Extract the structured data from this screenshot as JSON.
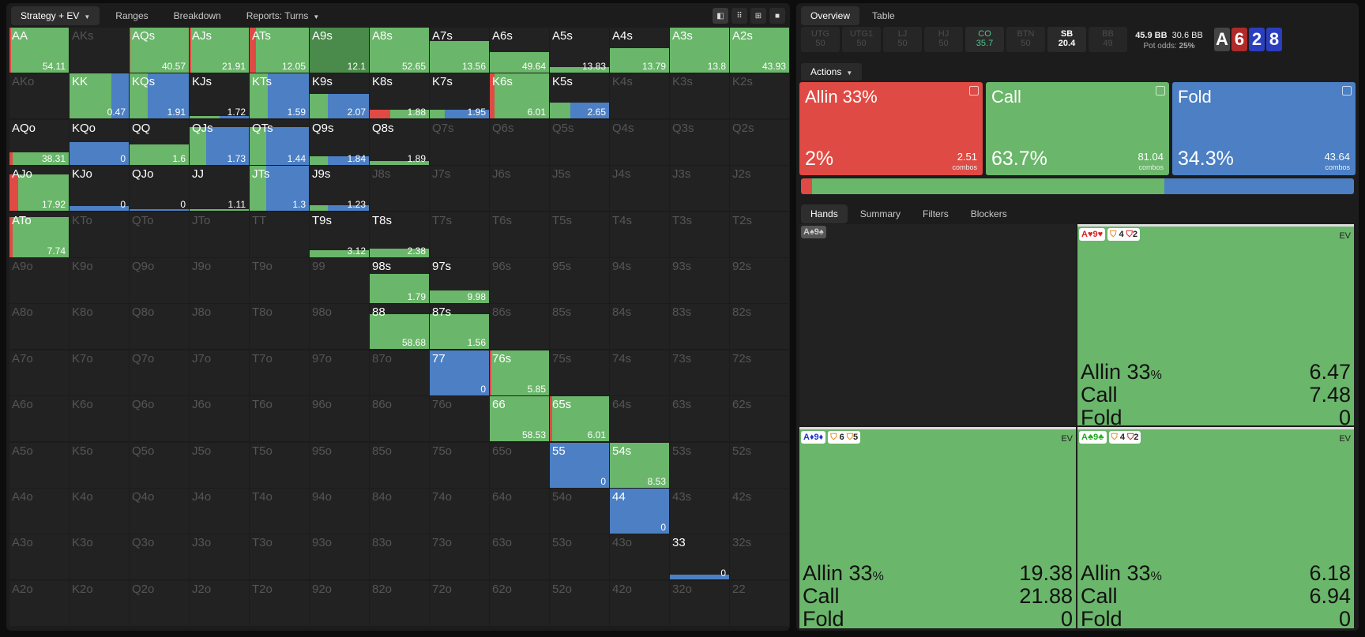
{
  "left_tabs": {
    "strategy": "Strategy + EV",
    "ranges": "Ranges",
    "breakdown": "Breakdown",
    "reports": "Reports: Turns"
  },
  "view_icons": [
    "◧",
    "⠿",
    "⊞",
    "■"
  ],
  "colors": {
    "allin": "#e04a44",
    "call": "#6ab66a",
    "fold": "#4c7fc4",
    "dark": "#222222",
    "deep": "#4a8a4a"
  },
  "hand_grid": [
    [
      "AA",
      "AKs",
      "AQs",
      "AJs",
      "ATs",
      "A9s",
      "A8s",
      "A7s",
      "A6s",
      "A5s",
      "A4s",
      "A3s",
      "A2s"
    ],
    [
      "AKo",
      "KK",
      "KQs",
      "KJs",
      "KTs",
      "K9s",
      "K8s",
      "K7s",
      "K6s",
      "K5s",
      "K4s",
      "K3s",
      "K2s"
    ],
    [
      "AQo",
      "KQo",
      "QQ",
      "QJs",
      "QTs",
      "Q9s",
      "Q8s",
      "Q7s",
      "Q6s",
      "Q5s",
      "Q4s",
      "Q3s",
      "Q2s"
    ],
    [
      "AJo",
      "KJo",
      "QJo",
      "JJ",
      "JTs",
      "J9s",
      "J8s",
      "J7s",
      "J6s",
      "J5s",
      "J4s",
      "J3s",
      "J2s"
    ],
    [
      "ATo",
      "KTo",
      "QTo",
      "JTo",
      "TT",
      "T9s",
      "T8s",
      "T7s",
      "T6s",
      "T5s",
      "T4s",
      "T3s",
      "T2s"
    ],
    [
      "A9o",
      "K9o",
      "Q9o",
      "J9o",
      "T9o",
      "99",
      "98s",
      "97s",
      "96s",
      "95s",
      "94s",
      "93s",
      "92s"
    ],
    [
      "A8o",
      "K8o",
      "Q8o",
      "J8o",
      "T8o",
      "98o",
      "88",
      "87s",
      "86s",
      "85s",
      "84s",
      "83s",
      "82s"
    ],
    [
      "A7o",
      "K7o",
      "Q7o",
      "J7o",
      "T7o",
      "97o",
      "87o",
      "77",
      "76s",
      "75s",
      "74s",
      "73s",
      "72s"
    ],
    [
      "A6o",
      "K6o",
      "Q6o",
      "J6o",
      "T6o",
      "96o",
      "86o",
      "76o",
      "66",
      "65s",
      "64s",
      "63s",
      "62s"
    ],
    [
      "A5o",
      "K5o",
      "Q5o",
      "J5o",
      "T5o",
      "95o",
      "85o",
      "75o",
      "65o",
      "55",
      "54s",
      "53s",
      "52s"
    ],
    [
      "A4o",
      "K4o",
      "Q4o",
      "J4o",
      "T4o",
      "94o",
      "84o",
      "74o",
      "64o",
      "54o",
      "44",
      "43s",
      "42s"
    ],
    [
      "A3o",
      "K3o",
      "Q3o",
      "J3o",
      "T3o",
      "93o",
      "83o",
      "73o",
      "63o",
      "53o",
      "43o",
      "33",
      "32s"
    ],
    [
      "A2o",
      "K2o",
      "Q2o",
      "J2o",
      "T2o",
      "92o",
      "82o",
      "72o",
      "62o",
      "52o",
      "42o",
      "32o",
      "22"
    ]
  ],
  "hand_data": {
    "AA": {
      "ev": "54.11",
      "fill": 1,
      "mix": [
        0.02,
        0.98,
        0
      ]
    },
    "AQs": {
      "ev": "40.57",
      "fill": 1,
      "mix": [
        0.01,
        0.99,
        0
      ]
    },
    "AJs": {
      "ev": "21.91",
      "fill": 1,
      "mix": [
        0.03,
        0.97,
        0
      ]
    },
    "ATs": {
      "ev": "12.05",
      "fill": 1,
      "mix": [
        0.1,
        0.9,
        0
      ]
    },
    "A9s": {
      "ev": "12.1",
      "fill": 1,
      "mix": [
        0,
        1,
        0
      ],
      "deep": true
    },
    "A8s": {
      "ev": "52.65",
      "fill": 1,
      "mix": [
        0,
        1,
        0
      ]
    },
    "A7s": {
      "ev": "13.56",
      "fill": 0.7,
      "mix": [
        0,
        1,
        0
      ]
    },
    "A6s": {
      "ev": "49.64",
      "fill": 0.45,
      "mix": [
        0,
        1,
        0
      ]
    },
    "A5s": {
      "ev": "13.83",
      "fill": 0.12,
      "mix": [
        0,
        1,
        0
      ]
    },
    "A4s": {
      "ev": "13.79",
      "fill": 0.55,
      "mix": [
        0,
        1,
        0
      ]
    },
    "A3s": {
      "ev": "13.8",
      "fill": 1,
      "mix": [
        0,
        1,
        0
      ]
    },
    "A2s": {
      "ev": "43.93",
      "fill": 1,
      "mix": [
        0,
        1,
        0
      ]
    },
    "KK": {
      "ev": "0.47",
      "fill": 1,
      "mix": [
        0,
        0.7,
        0.3
      ]
    },
    "KQs": {
      "ev": "1.91",
      "fill": 1,
      "mix": [
        0,
        0.3,
        0.7
      ]
    },
    "KJs": {
      "ev": "1.72",
      "fill": 0.06,
      "mix": [
        0,
        0.5,
        0.5
      ]
    },
    "KTs": {
      "ev": "1.59",
      "fill": 1,
      "mix": [
        0,
        0.3,
        0.7
      ]
    },
    "K9s": {
      "ev": "2.07",
      "fill": 0.55,
      "mix": [
        0,
        0.3,
        0.7
      ]
    },
    "K8s": {
      "ev": "1.88",
      "fill": 0.2,
      "mix": [
        0.35,
        0.65,
        0
      ]
    },
    "K7s": {
      "ev": "1.95",
      "fill": 0.2,
      "mix": [
        0,
        0.25,
        0.75
      ]
    },
    "K6s": {
      "ev": "6.01",
      "fill": 1,
      "mix": [
        0.08,
        0.92,
        0
      ]
    },
    "K5s": {
      "ev": "2.65",
      "fill": 0.35,
      "mix": [
        0,
        0.35,
        0.65
      ]
    },
    "AQo": {
      "ev": "38.31",
      "fill": 0.28,
      "mix": [
        0.05,
        0.95,
        0
      ]
    },
    "KQo": {
      "ev": "0",
      "fill": 0.5,
      "mix": [
        0,
        0,
        1
      ]
    },
    "QQ": {
      "ev": "1.6",
      "fill": 0.45,
      "mix": [
        0,
        1,
        0
      ]
    },
    "QJs": {
      "ev": "1.73",
      "fill": 0.85,
      "mix": [
        0,
        0.28,
        0.72
      ]
    },
    "QTs": {
      "ev": "1.44",
      "fill": 0.85,
      "mix": [
        0,
        0.28,
        0.72
      ]
    },
    "Q9s": {
      "ev": "1.84",
      "fill": 0.2,
      "mix": [
        0,
        0.3,
        0.7
      ]
    },
    "Q8s": {
      "ev": "1.89",
      "fill": 0.08,
      "mix": [
        0,
        1,
        0
      ]
    },
    "AJo": {
      "ev": "17.92",
      "fill": 0.8,
      "mix": [
        0.15,
        0.85,
        0
      ]
    },
    "KJo": {
      "ev": "0",
      "fill": 0.1,
      "mix": [
        0,
        0,
        1
      ]
    },
    "QJo": {
      "ev": "0",
      "fill": 0.01,
      "mix": [
        0,
        0,
        1
      ]
    },
    "JJ": {
      "ev": "1.11",
      "fill": 0.03,
      "mix": [
        0,
        1,
        0
      ]
    },
    "JTs": {
      "ev": "1.3",
      "fill": 1,
      "mix": [
        0,
        0.28,
        0.72
      ]
    },
    "J9s": {
      "ev": "1.23",
      "fill": 0.12,
      "mix": [
        0,
        0.3,
        0.7
      ]
    },
    "ATo": {
      "ev": "7.74",
      "fill": 0.9,
      "mix": [
        0.05,
        0.95,
        0
      ]
    },
    "T9s": {
      "ev": "3.12",
      "fill": 0.15,
      "mix": [
        0,
        1,
        0
      ]
    },
    "T8s": {
      "ev": "2.38",
      "fill": 0.2,
      "mix": [
        0,
        1,
        0
      ]
    },
    "98s": {
      "ev": "1.79",
      "fill": 0.65,
      "mix": [
        0,
        1,
        0
      ]
    },
    "97s": {
      "ev": "9.98",
      "fill": 0.28,
      "mix": [
        0,
        1,
        0
      ]
    },
    "88": {
      "ev": "58.68",
      "fill": 0.78,
      "mix": [
        0,
        1,
        0
      ]
    },
    "87s": {
      "ev": "1.56",
      "fill": 0.78,
      "mix": [
        0,
        1,
        0
      ]
    },
    "77": {
      "ev": "0",
      "fill": 1,
      "mix": [
        0,
        0,
        1
      ]
    },
    "76s": {
      "ev": "5.85",
      "fill": 1,
      "mix": [
        0.03,
        0.97,
        0
      ]
    },
    "66": {
      "ev": "58.53",
      "fill": 1,
      "mix": [
        0,
        1,
        0
      ]
    },
    "65s": {
      "ev": "6.01",
      "fill": 1,
      "mix": [
        0.04,
        0.96,
        0
      ]
    },
    "55": {
      "ev": "0",
      "fill": 1,
      "mix": [
        0,
        0,
        1
      ]
    },
    "54s": {
      "ev": "8.53",
      "fill": 1,
      "mix": [
        0,
        1,
        0
      ]
    },
    "44": {
      "ev": "0",
      "fill": 1,
      "mix": [
        0,
        0,
        1
      ]
    },
    "33": {
      "ev": "0",
      "fill": 0.1,
      "mix": [
        0,
        0,
        1
      ]
    }
  },
  "right_tabs": {
    "overview": "Overview",
    "table": "Table"
  },
  "positions": [
    {
      "name": "UTG",
      "stack": "50"
    },
    {
      "name": "UTG1",
      "stack": "50"
    },
    {
      "name": "LJ",
      "stack": "50"
    },
    {
      "name": "HJ",
      "stack": "50"
    },
    {
      "name": "CO",
      "stack": "35.7"
    },
    {
      "name": "BTN",
      "stack": "50"
    },
    {
      "name": "SB",
      "stack": "20.4"
    },
    {
      "name": "BB",
      "stack": "49"
    }
  ],
  "pot": {
    "bb": "45.9 BB",
    "bb2": "30.6 BB",
    "odds_label": "Pot odds:",
    "odds": "25%"
  },
  "board": [
    {
      "rank": "A",
      "color": "#444444"
    },
    {
      "rank": "6",
      "color": "#b02a2a"
    },
    {
      "rank": "2",
      "color": "#2a3fbf"
    },
    {
      "rank": "8",
      "color": "#2a3fbf"
    }
  ],
  "actions_label": "Actions",
  "actions": [
    {
      "name": "Allin 33%",
      "pct": "2%",
      "combos": "2.51",
      "combos_label": "combos",
      "color": "#e04a44",
      "share": 0.02
    },
    {
      "name": "Call",
      "pct": "63.7%",
      "combos": "81.04",
      "combos_label": "combos",
      "color": "#6ab66a",
      "share": 0.637
    },
    {
      "name": "Fold",
      "pct": "34.3%",
      "combos": "43.64",
      "combos_label": "combos",
      "color": "#4c7fc4",
      "share": 0.343
    }
  ],
  "sub_tabs": {
    "hands": "Hands",
    "summary": "Summary",
    "filters": "Filters",
    "blockers": "Blockers"
  },
  "hands": [
    {
      "cards": "A♠9♠",
      "grey": true
    },
    {
      "cards": "A♥9♥",
      "card_color": "#d22",
      "b1": "4",
      "b2": "2",
      "ev": "EV",
      "rows": [
        [
          "Allin 33",
          "%",
          "6.47"
        ],
        [
          "Call",
          "",
          "7.48"
        ],
        [
          "Fold",
          "",
          "0"
        ]
      ]
    },
    {
      "cards": "A♦9♦",
      "card_color": "#23c",
      "b1": "6",
      "b2": "5",
      "ev": "EV",
      "rows": [
        [
          "Allin 33",
          "%",
          "19.38"
        ],
        [
          "Call",
          "",
          "21.88"
        ],
        [
          "Fold",
          "",
          "0"
        ]
      ]
    },
    {
      "cards": "A♣9♣",
      "card_color": "#2a2",
      "b1": "4",
      "b2": "2",
      "ev": "EV",
      "rows": [
        [
          "Allin 33",
          "%",
          "6.18"
        ],
        [
          "Call",
          "",
          "6.94"
        ],
        [
          "Fold",
          "",
          "0"
        ]
      ]
    }
  ]
}
